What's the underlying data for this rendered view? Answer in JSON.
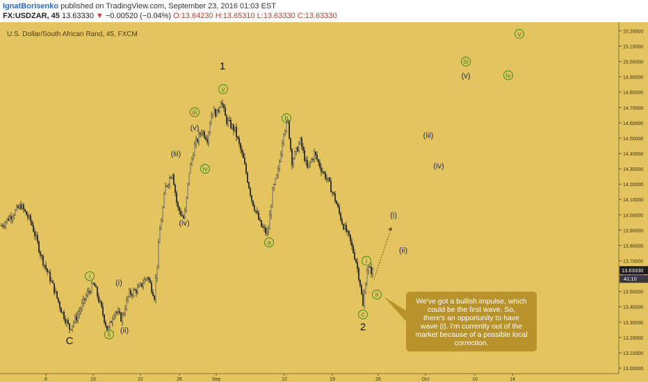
{
  "header": {
    "author": "IgnatBorisenko",
    "published_text": "published on TradingView.com, September 23, 2016 01:03 EST",
    "symbol": "FX:USDZAR, 45",
    "last": "13.63330",
    "change_arrow": "▼",
    "change": "−0.00520 (−0.04%)",
    "open": "O:13.64230",
    "high": "H:13.65310",
    "low": "L:13.63330",
    "close": "C:13.63330"
  },
  "chart_data": {
    "type": "candlestick",
    "title": "U.S. Dollar/South African Rand, 45, FXCM",
    "ylim": [
      13.0,
      15.22
    ],
    "y_ticks": [
      "13.00000",
      "13.10000",
      "13.20000",
      "13.30000",
      "13.40000",
      "13.50000",
      "13.60000",
      "13.70000",
      "13.80000",
      "13.90000",
      "14.00000",
      "14.10000",
      "14.20000",
      "14.30000",
      "14.40000",
      "14.50000",
      "14.60000",
      "14.70000",
      "14.80000",
      "14.90000",
      "15.00000",
      "15.10000",
      "15.20000"
    ],
    "x_ticks": [
      "8",
      "15",
      "22",
      "26",
      "Sep",
      "12",
      "19",
      "26",
      "Oct",
      "10",
      "14"
    ],
    "price_path": [
      [
        0,
        13.92
      ],
      [
        30,
        14.06
      ],
      [
        45,
        13.95
      ],
      [
        60,
        13.72
      ],
      [
        75,
        13.55
      ],
      [
        88,
        13.38
      ],
      [
        100,
        13.26
      ],
      [
        110,
        13.33
      ],
      [
        125,
        13.48
      ],
      [
        135,
        13.55
      ],
      [
        145,
        13.4
      ],
      [
        155,
        13.24
      ],
      [
        165,
        13.38
      ],
      [
        175,
        13.32
      ],
      [
        185,
        13.48
      ],
      [
        200,
        13.52
      ],
      [
        212,
        13.6
      ],
      [
        222,
        13.47
      ],
      [
        230,
        13.9
      ],
      [
        238,
        14.18
      ],
      [
        248,
        14.28
      ],
      [
        255,
        14.05
      ],
      [
        265,
        13.97
      ],
      [
        272,
        14.28
      ],
      [
        280,
        14.45
      ],
      [
        290,
        14.55
      ],
      [
        298,
        14.5
      ],
      [
        305,
        14.68
      ],
      [
        312,
        14.66
      ],
      [
        318,
        14.75
      ],
      [
        325,
        14.62
      ],
      [
        338,
        14.55
      ],
      [
        350,
        14.36
      ],
      [
        362,
        14.1
      ],
      [
        375,
        13.93
      ],
      [
        385,
        13.87
      ],
      [
        392,
        14.15
      ],
      [
        400,
        14.28
      ],
      [
        408,
        14.55
      ],
      [
        414,
        14.6
      ],
      [
        420,
        14.35
      ],
      [
        432,
        14.48
      ],
      [
        442,
        14.3
      ],
      [
        452,
        14.4
      ],
      [
        462,
        14.3
      ],
      [
        472,
        14.22
      ],
      [
        482,
        14.1
      ],
      [
        492,
        13.95
      ],
      [
        502,
        13.85
      ],
      [
        512,
        13.7
      ],
      [
        518,
        13.55
      ],
      [
        522,
        13.4
      ],
      [
        528,
        13.65
      ],
      [
        536,
        13.63
      ]
    ],
    "current_price": "13.63330",
    "current_time": "41:10",
    "projection": [
      [
        538,
        13.58
      ],
      [
        563,
        13.92
      ]
    ],
    "wave_labels": [
      {
        "text": "C",
        "x": 100,
        "y": 13.18,
        "style": "plain"
      },
      {
        "text": "i",
        "x": 129,
        "y": 13.6,
        "style": "green"
      },
      {
        "text": "ii",
        "x": 157,
        "y": 13.22,
        "style": "green"
      },
      {
        "text": "(i)",
        "x": 171,
        "y": 13.56,
        "style": "blue"
      },
      {
        "text": "(ii)",
        "x": 179,
        "y": 13.25,
        "style": "blue"
      },
      {
        "text": "(iii)",
        "x": 253,
        "y": 14.4,
        "style": "blue"
      },
      {
        "text": "(iv)",
        "x": 265,
        "y": 13.95,
        "style": "blue"
      },
      {
        "text": "(v)",
        "x": 280,
        "y": 14.57,
        "style": "blue"
      },
      {
        "text": "iii",
        "x": 280,
        "y": 14.67,
        "style": "green"
      },
      {
        "text": "iv",
        "x": 295,
        "y": 14.3,
        "style": "green"
      },
      {
        "text": "v",
        "x": 321,
        "y": 14.82,
        "style": "green"
      },
      {
        "text": "1",
        "x": 320,
        "y": 14.97,
        "style": "plain"
      },
      {
        "text": "a",
        "x": 387,
        "y": 13.82,
        "style": "green"
      },
      {
        "text": "b",
        "x": 412,
        "y": 14.63,
        "style": "green"
      },
      {
        "text": "i",
        "x": 527,
        "y": 13.7,
        "style": "green"
      },
      {
        "text": "ii",
        "x": 542,
        "y": 13.48,
        "style": "green"
      },
      {
        "text": "c",
        "x": 522,
        "y": 13.35,
        "style": "green"
      },
      {
        "text": "2",
        "x": 522,
        "y": 13.27,
        "style": "plain"
      },
      {
        "text": "(i)",
        "x": 566,
        "y": 14.0,
        "style": "blue"
      },
      {
        "text": "(ii)",
        "x": 580,
        "y": 13.77,
        "style": "blue"
      },
      {
        "text": "(iii)",
        "x": 616,
        "y": 14.52,
        "style": "blue"
      },
      {
        "text": "(iv)",
        "x": 631,
        "y": 14.32,
        "style": "blue"
      },
      {
        "text": "(v)",
        "x": 670,
        "y": 14.91,
        "style": "blue"
      },
      {
        "text": "iii",
        "x": 670,
        "y": 15.0,
        "style": "green"
      },
      {
        "text": "iv",
        "x": 731,
        "y": 14.91,
        "style": "green"
      },
      {
        "text": "v",
        "x": 747,
        "y": 15.18,
        "style": "green"
      }
    ],
    "callout": {
      "lines": [
        "We've got a bullish impulse, which",
        "could be the first wave. So,",
        "there's an opportunity to have",
        "wave (i). I'm currently out of the",
        "market because of a possible local",
        "correction."
      ]
    },
    "colors": {
      "background": "#e3c45f",
      "candle": "#2b2b2b",
      "wave_green": "#3c8a23",
      "wave_blue": "#1a2a5e",
      "callout": "#b8932b",
      "price_tag": "#1e1e1e"
    }
  }
}
